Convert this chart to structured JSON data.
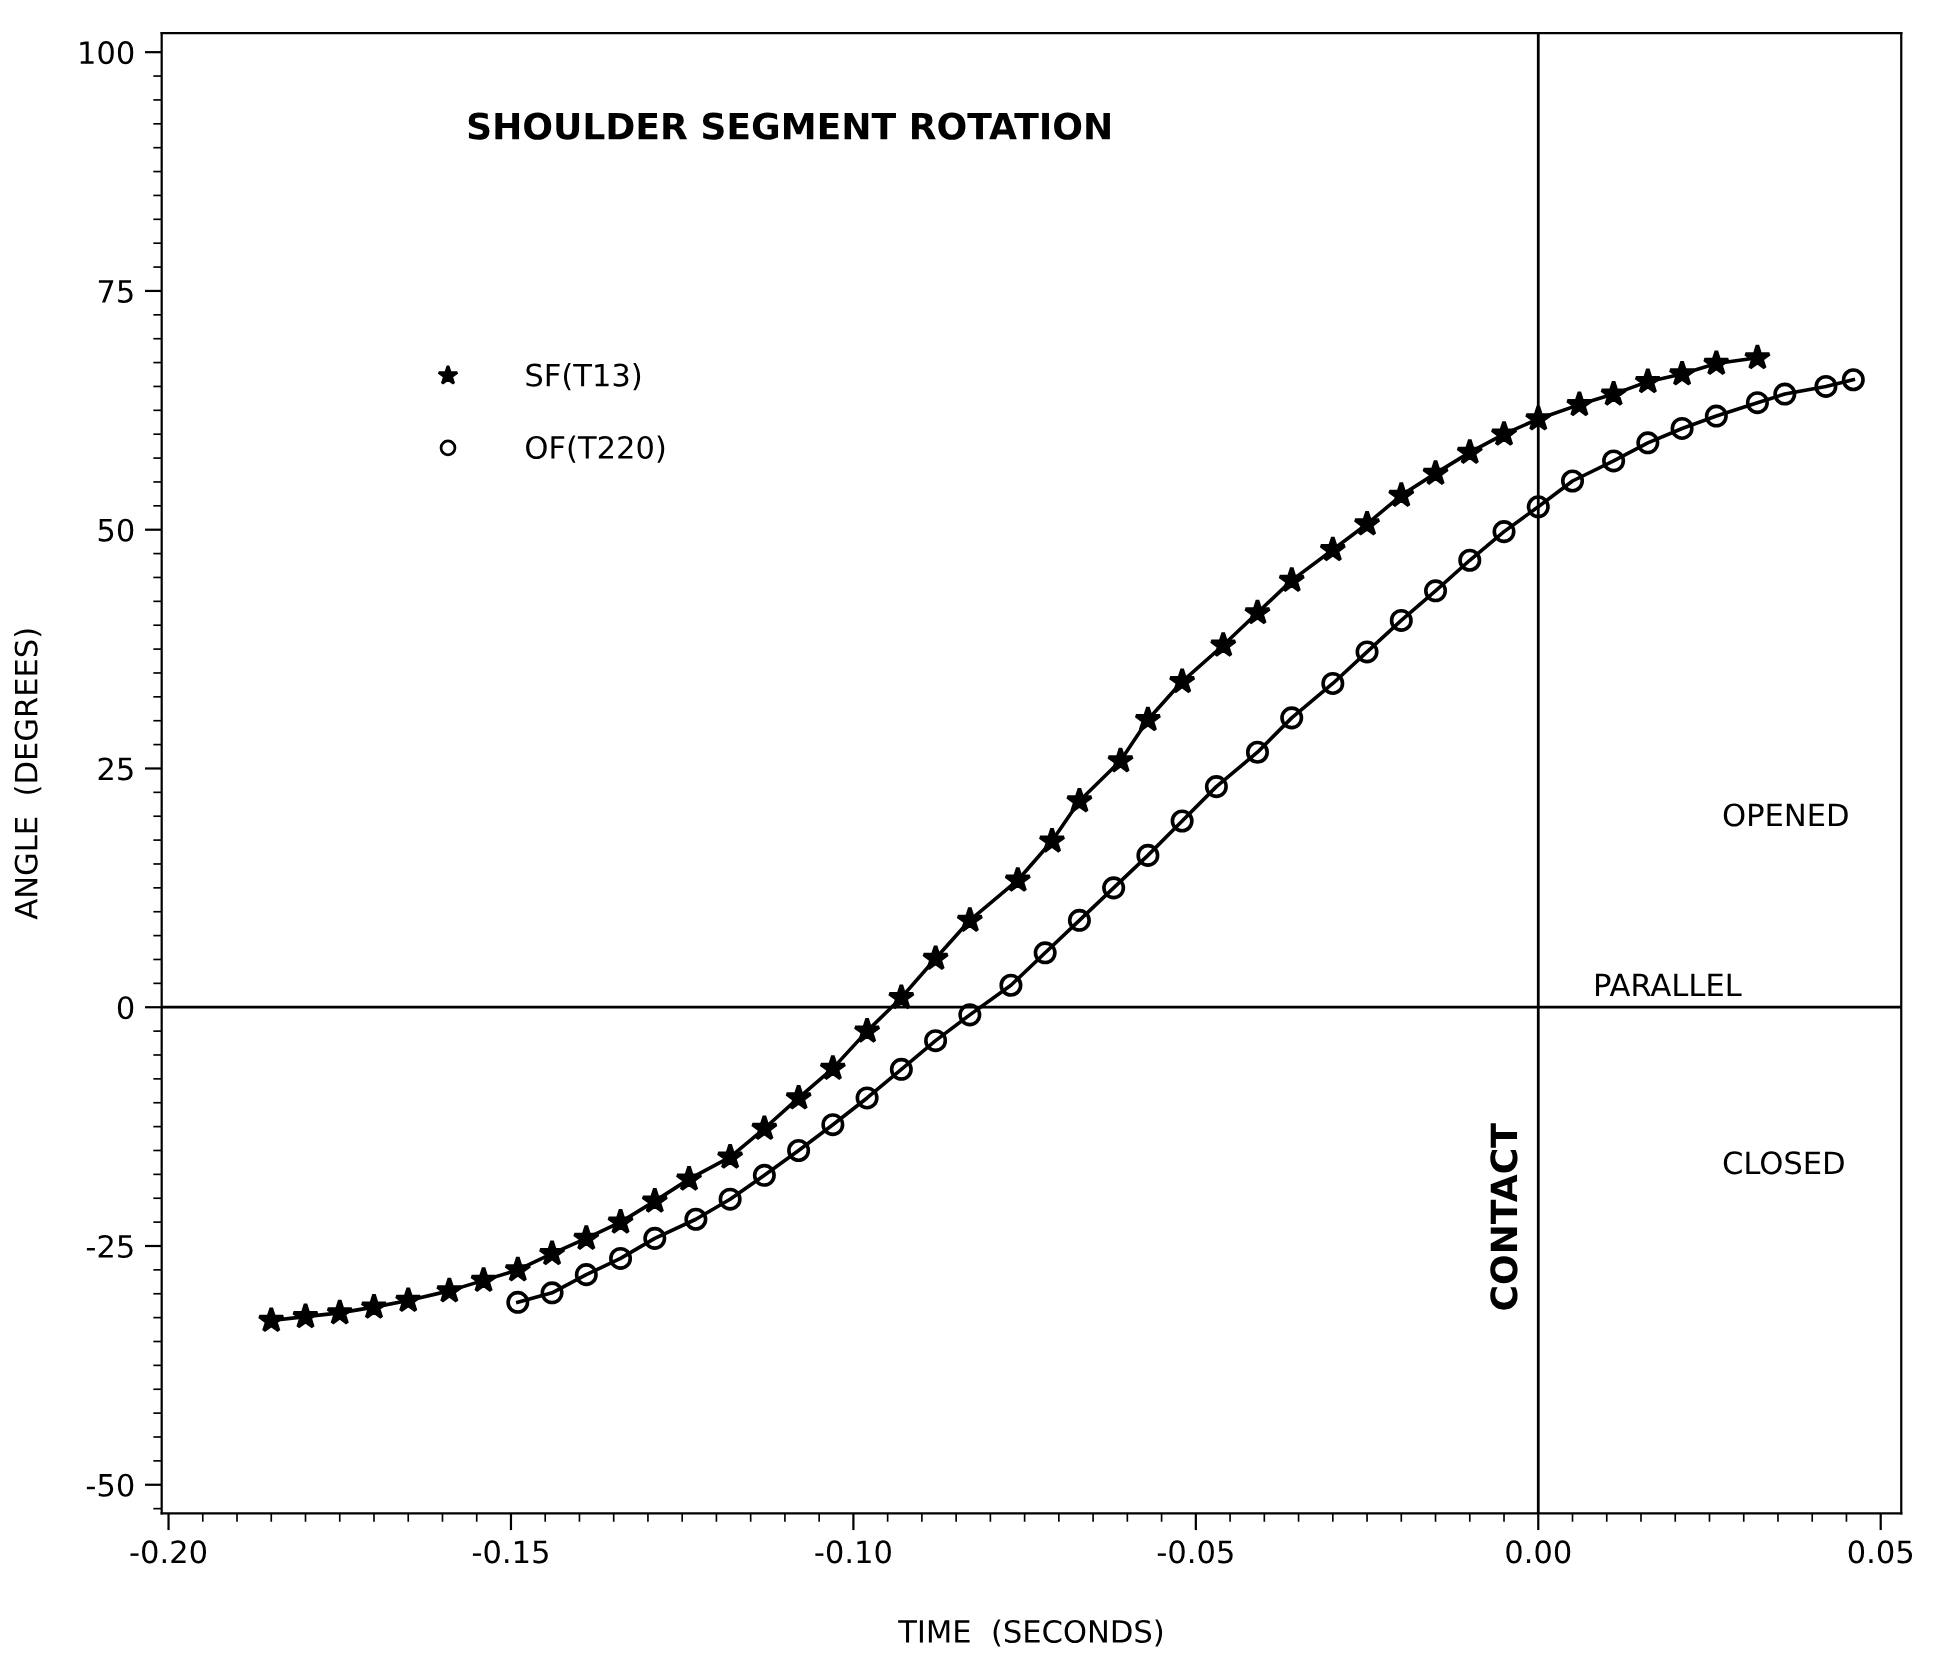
{
  "chart_data": {
    "type": "line",
    "title": "SHOULDER SEGMENT ROTATION",
    "xlabel": "TIME  (SECONDS)",
    "ylabel": "ANGLE  (DEGREES)",
    "xlim": [
      -0.201,
      0.053
    ],
    "ylim": [
      -53,
      102
    ],
    "xticks": [
      {
        "value": -0.2,
        "label": "-0.20"
      },
      {
        "value": -0.15,
        "label": "-0.15"
      },
      {
        "value": -0.1,
        "label": "-0.10"
      },
      {
        "value": -0.05,
        "label": "-0.05"
      },
      {
        "value": 0,
        "label": "0.00"
      },
      {
        "value": 0.05,
        "label": "0.05"
      }
    ],
    "yticks": [
      -50,
      -25,
      0,
      25,
      50,
      75,
      100
    ],
    "grid": false,
    "legend": "top left",
    "line_style": "solid",
    "series": [
      {
        "name": "SF(T13)",
        "color": "#000000",
        "marker": "star",
        "x": [
          -0.185,
          -0.18,
          -0.175,
          -0.17,
          -0.165,
          -0.159,
          -0.154,
          -0.149,
          -0.144,
          -0.139,
          -0.134,
          -0.129,
          -0.124,
          -0.118,
          -0.113,
          -0.108,
          -0.103,
          -0.098,
          -0.093,
          -0.088,
          -0.083,
          -0.076,
          -0.071,
          -0.067,
          -0.061,
          -0.057,
          -0.052,
          -0.046,
          -0.041,
          -0.036,
          -0.03,
          -0.025,
          -0.02,
          -0.015,
          -0.01,
          -0.005,
          0.0,
          0.006,
          0.011,
          0.016,
          0.021,
          0.026,
          0.032
        ],
        "values": [
          -32.8,
          -32.4,
          -32.0,
          -31.4,
          -30.7,
          -29.7,
          -28.6,
          -27.5,
          -25.8,
          -24.2,
          -22.5,
          -20.3,
          -18.0,
          -15.7,
          -12.7,
          -9.5,
          -6.4,
          -2.5,
          1.0,
          5.1,
          9.1,
          13.3,
          17.4,
          21.6,
          25.8,
          30.1,
          34.1,
          37.9,
          41.3,
          44.7,
          47.9,
          50.6,
          53.6,
          55.9,
          58.1,
          60.0,
          61.6,
          63.1,
          64.2,
          65.5,
          66.3,
          67.4,
          68.0
        ]
      },
      {
        "name": "OF(T220)",
        "color": "#000000",
        "marker": "circle",
        "x": [
          -0.149,
          -0.144,
          -0.139,
          -0.134,
          -0.129,
          -0.123,
          -0.118,
          -0.113,
          -0.108,
          -0.103,
          -0.098,
          -0.093,
          -0.088,
          -0.083,
          -0.077,
          -0.072,
          -0.067,
          -0.062,
          -0.057,
          -0.052,
          -0.047,
          -0.041,
          -0.036,
          -0.03,
          -0.025,
          -0.02,
          -0.015,
          -0.01,
          -0.005,
          0.0,
          0.005,
          0.011,
          0.016,
          0.021,
          0.026,
          0.032,
          0.036,
          0.042,
          0.046
        ],
        "values": [
          -30.9,
          -29.9,
          -28.0,
          -26.3,
          -24.2,
          -22.2,
          -20.1,
          -17.6,
          -15.0,
          -12.3,
          -9.5,
          -6.5,
          -3.5,
          -0.8,
          2.3,
          5.7,
          9.1,
          12.5,
          15.9,
          19.5,
          23.1,
          26.7,
          30.3,
          33.9,
          37.2,
          40.5,
          43.6,
          46.8,
          49.8,
          52.4,
          55.1,
          57.2,
          59.1,
          60.6,
          61.9,
          63.3,
          64.2,
          65.0,
          65.7
        ]
      }
    ],
    "ref_lines": [
      {
        "axis": "x",
        "value": 0,
        "label": "CONTACT",
        "color": "#000000"
      },
      {
        "axis": "y",
        "value": 0,
        "label": "PARALLEL",
        "color": "#000000"
      }
    ],
    "annotations": [
      "OPENED",
      "CLOSED"
    ]
  }
}
